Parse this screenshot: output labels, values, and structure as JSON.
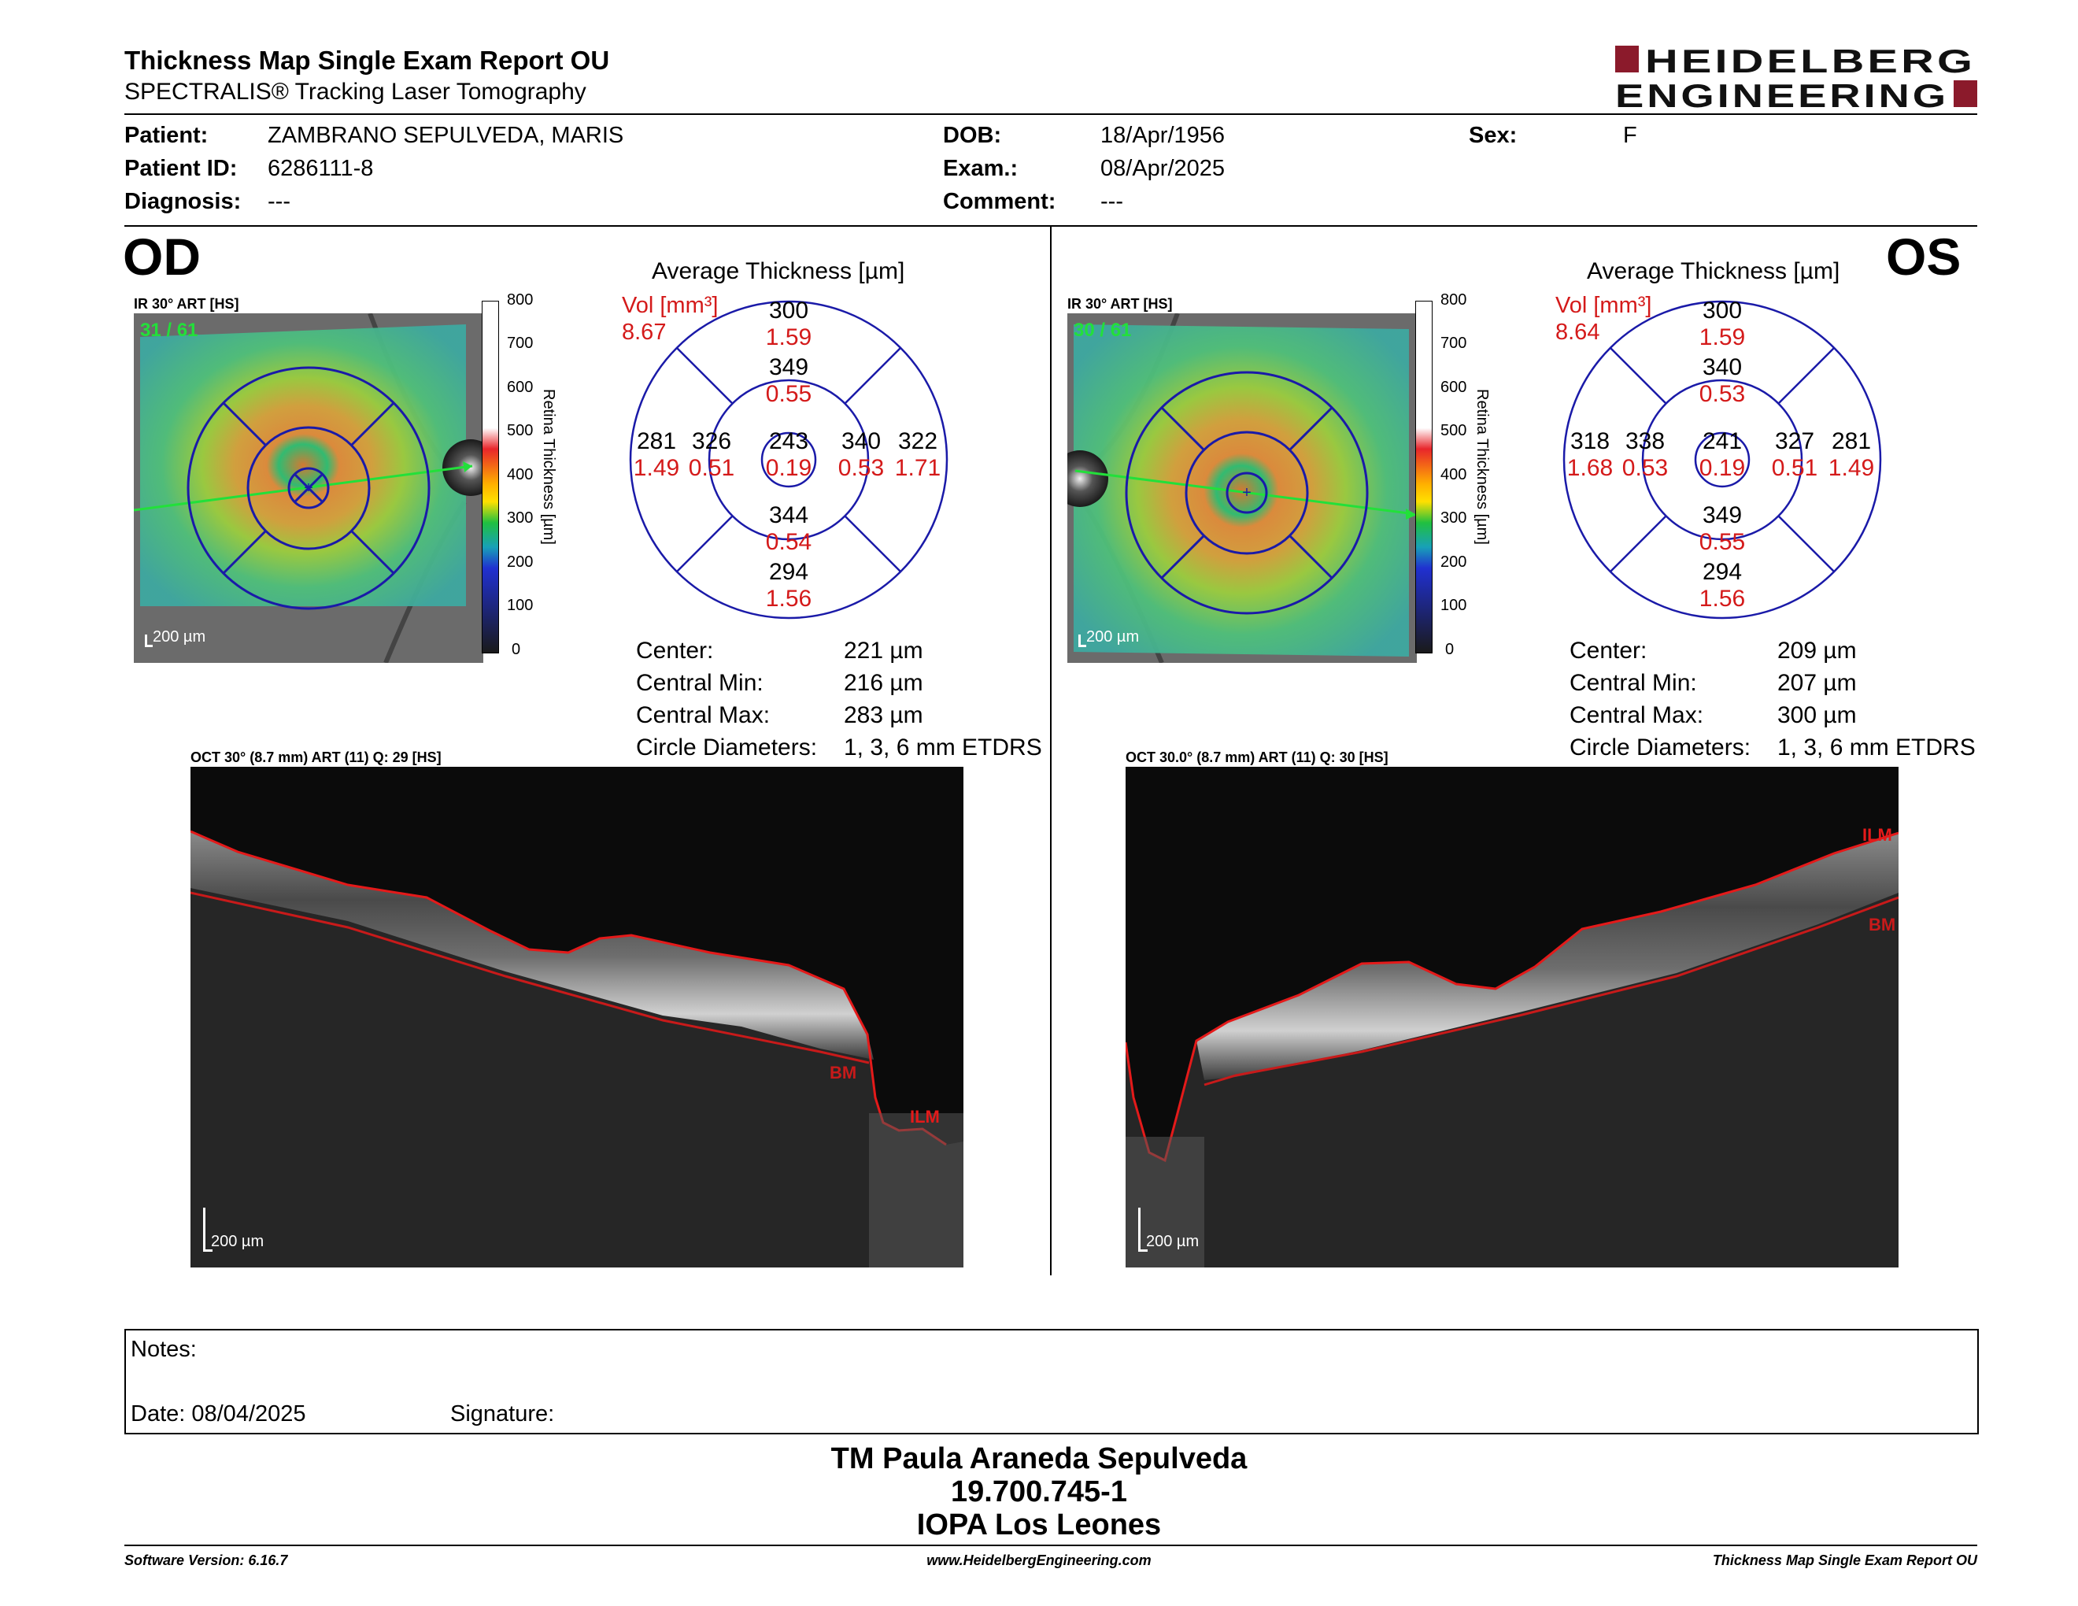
{
  "header": {
    "title": "Thickness Map Single Exam Report OU",
    "subtitle": "SPECTRALIS® Tracking Laser Tomography",
    "logo_line1": "HEIDELBERG",
    "logo_line2": "ENGINEERING",
    "brand_color": "#8b1a2b"
  },
  "patient": {
    "patient_label": "Patient:",
    "patient_value": "ZAMBRANO SEPULVEDA, MARIS",
    "id_label": "Patient ID:",
    "id_value": "6286111-8",
    "diagnosis_label": "Diagnosis:",
    "diagnosis_value": "---",
    "dob_label": "DOB:",
    "dob_value": "18/Apr/1956",
    "exam_label": "Exam.:",
    "exam_value": "08/Apr/2025",
    "comment_label": "Comment:",
    "comment_value": "---",
    "sex_label": "Sex:",
    "sex_value": "F"
  },
  "od": {
    "eye_label": "OD",
    "fundus_label": "IR 30° ART [HS]",
    "frame_count": "31 / 61",
    "scale_label": "200 µm",
    "colorbar_ticks": [
      "800",
      "700",
      "600",
      "500",
      "400",
      "300",
      "200",
      "100",
      "0"
    ],
    "colorbar_title": "Retina Thickness [µm]",
    "avg_title": "Average Thickness [µm]",
    "vol_label": "Vol [mm³]",
    "vol_total": "8.67",
    "grid": {
      "outer_superior": {
        "thickness": "300",
        "vol": "1.59"
      },
      "inner_superior": {
        "thickness": "349",
        "vol": "0.55"
      },
      "outer_temporal": {
        "thickness": "281",
        "vol": "1.49"
      },
      "inner_temporal": {
        "thickness": "326",
        "vol": "0.51"
      },
      "center": {
        "thickness": "243",
        "vol": "0.19"
      },
      "inner_nasal": {
        "thickness": "340",
        "vol": "0.53"
      },
      "outer_nasal": {
        "thickness": "322",
        "vol": "1.71"
      },
      "inner_inferior": {
        "thickness": "344",
        "vol": "0.54"
      },
      "outer_inferior": {
        "thickness": "294",
        "vol": "1.56"
      }
    },
    "stats": {
      "center_label": "Center:",
      "center_value": "221 µm",
      "min_label": "Central Min:",
      "min_value": "216 µm",
      "max_label": "Central Max:",
      "max_value": "283 µm",
      "circle_label": "Circle Diameters:",
      "circle_value": "1, 3, 6 mm ETDRS"
    },
    "oct_label": "OCT 30° (8.7 mm) ART (11) Q: 29 [HS]",
    "oct_scale": "200 µm",
    "ilm": "ILM",
    "bm": "BM"
  },
  "os": {
    "eye_label": "OS",
    "fundus_label": "IR 30° ART [HS]",
    "frame_count": "30 / 61",
    "scale_label": "200 µm",
    "colorbar_ticks": [
      "800",
      "700",
      "600",
      "500",
      "400",
      "300",
      "200",
      "100",
      "0"
    ],
    "colorbar_title": "Retina Thickness [µm]",
    "avg_title": "Average Thickness [µm]",
    "vol_label": "Vol [mm³]",
    "vol_total": "8.64",
    "grid": {
      "outer_superior": {
        "thickness": "300",
        "vol": "1.59"
      },
      "inner_superior": {
        "thickness": "340",
        "vol": "0.53"
      },
      "outer_temporal": {
        "thickness": "318",
        "vol": "1.68"
      },
      "inner_temporal": {
        "thickness": "338",
        "vol": "0.53"
      },
      "center": {
        "thickness": "241",
        "vol": "0.19"
      },
      "inner_nasal": {
        "thickness": "327",
        "vol": "0.51"
      },
      "outer_nasal": {
        "thickness": "281",
        "vol": "1.49"
      },
      "inner_inferior": {
        "thickness": "349",
        "vol": "0.55"
      },
      "outer_inferior": {
        "thickness": "294",
        "vol": "1.56"
      }
    },
    "stats": {
      "center_label": "Center:",
      "center_value": "209 µm",
      "min_label": "Central Min:",
      "min_value": "207 µm",
      "max_label": "Central Max:",
      "max_value": "300 µm",
      "circle_label": "Circle Diameters:",
      "circle_value": "1, 3, 6 mm ETDRS"
    },
    "oct_label": "OCT 30.0° (8.7 mm) ART (11) Q: 30 [HS]",
    "oct_scale": "200 µm",
    "ilm": "ILM",
    "bm": "BM"
  },
  "notes": {
    "notes_label": "Notes:",
    "date_label": "Date: 08/04/2025",
    "signature_label": "Signature:"
  },
  "signatory": {
    "name": "TM Paula Araneda Sepulveda",
    "id": "19.700.745-1",
    "institution": "IOPA Los Leones"
  },
  "footer": {
    "software": "Software Version: 6.16.7",
    "website": "www.HeidelbergEngineering.com",
    "report": "Thickness Map Single Exam Report OU"
  }
}
